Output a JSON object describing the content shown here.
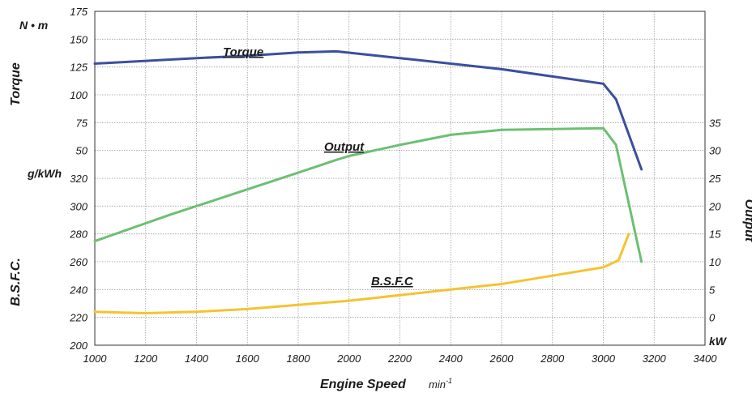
{
  "chart_data": {
    "type": "line",
    "xlabel": "Engine Speed",
    "xunit": "min",
    "xunit_exp": "-1",
    "xlim": [
      1000,
      3400
    ],
    "x_ticks": [
      "1000",
      "1200",
      "1400",
      "1600",
      "1800",
      "2000",
      "2200",
      "2400",
      "2600",
      "2800",
      "3000",
      "3200",
      "3400"
    ],
    "grid": true,
    "left_axes": {
      "torque": {
        "title": "Torque",
        "unit": "N • m",
        "ticks": [
          "100",
          "125",
          "150",
          "175"
        ],
        "ylim": [
          100,
          175
        ]
      },
      "torque_lower": {
        "ticks": [
          "50",
          "75"
        ]
      },
      "bsfc": {
        "title": "B.S.F.C.",
        "unit": "g/kWh",
        "ticks": [
          "200",
          "220",
          "240",
          "260",
          "280",
          "300",
          "320"
        ],
        "ylim": [
          200,
          320
        ]
      }
    },
    "right_axis": {
      "title": "Output",
      "unit": "kW",
      "ticks": [
        "0",
        "5",
        "10",
        "15",
        "20",
        "25",
        "30",
        "35"
      ],
      "ylim": [
        0,
        35
      ]
    },
    "series": [
      {
        "name": "Torque",
        "axis": "torque",
        "color": "#3b4f9e",
        "points": [
          [
            1000,
            128
          ],
          [
            1400,
            133
          ],
          [
            1600,
            135
          ],
          [
            1800,
            138
          ],
          [
            1950,
            139
          ],
          [
            2200,
            133
          ],
          [
            2600,
            123
          ],
          [
            3000,
            110
          ],
          [
            3050,
            96
          ],
          [
            3150,
            33
          ]
        ]
      },
      {
        "name": "Output",
        "axis": "output",
        "color": "#6cc072",
        "points": [
          [
            1000,
            13.7
          ],
          [
            1300,
            18.5
          ],
          [
            1600,
            23
          ],
          [
            1800,
            26
          ],
          [
            1950,
            28.3
          ],
          [
            2000,
            29
          ],
          [
            2200,
            31
          ],
          [
            2400,
            32.8
          ],
          [
            2600,
            33.7
          ],
          [
            3000,
            34
          ],
          [
            3050,
            31
          ],
          [
            3150,
            10
          ]
        ]
      },
      {
        "name": "B.S.F.C",
        "axis": "bsfc",
        "color": "#f5c332",
        "points": [
          [
            1000,
            224
          ],
          [
            1200,
            223
          ],
          [
            1400,
            224
          ],
          [
            1600,
            226
          ],
          [
            1800,
            229
          ],
          [
            2000,
            232
          ],
          [
            2200,
            236
          ],
          [
            2400,
            240
          ],
          [
            2600,
            244
          ],
          [
            2800,
            250
          ],
          [
            3000,
            256
          ],
          [
            3060,
            261
          ],
          [
            3100,
            280
          ]
        ]
      }
    ]
  }
}
